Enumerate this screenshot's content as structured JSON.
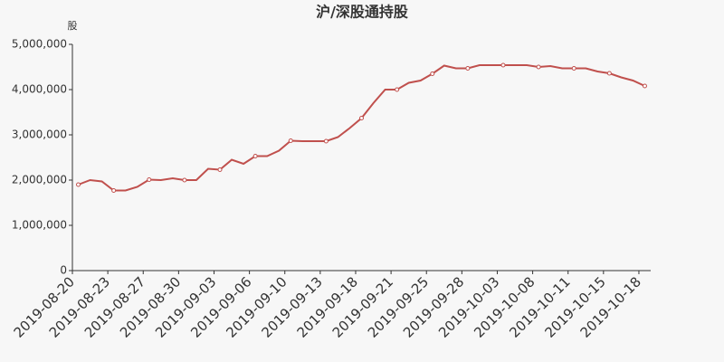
{
  "chart_data": {
    "type": "line",
    "title": "沪/深股通持股",
    "y_unit": "股",
    "categories": [
      "2019-08-20",
      null,
      null,
      "2019-08-23",
      null,
      null,
      "2019-08-27",
      null,
      null,
      "2019-08-30",
      null,
      null,
      "2019-09-03",
      null,
      null,
      "2019-09-06",
      null,
      null,
      "2019-09-10",
      null,
      null,
      "2019-09-13",
      null,
      null,
      "2019-09-18",
      null,
      null,
      "2019-09-21",
      null,
      null,
      "2019-09-25",
      null,
      null,
      "2019-09-28",
      null,
      null,
      "2019-10-03",
      null,
      null,
      "2019-10-08",
      null,
      null,
      "2019-10-11",
      null,
      null,
      "2019-10-15",
      null,
      null,
      "2019-10-18"
    ],
    "series": [
      {
        "color": "#c0504d",
        "values": [
          1900000,
          2000000,
          1970000,
          1770000,
          1770000,
          1850000,
          2010000,
          2000000,
          2040000,
          2000000,
          2000000,
          2250000,
          2230000,
          2450000,
          2360000,
          2530000,
          2530000,
          2650000,
          2870000,
          2860000,
          2860000,
          2860000,
          2950000,
          3150000,
          3370000,
          3700000,
          4000000,
          4000000,
          4150000,
          4200000,
          4350000,
          4530000,
          4470000,
          4470000,
          4540000,
          4540000,
          4540000,
          4540000,
          4540000,
          4500000,
          4520000,
          4470000,
          4470000,
          4470000,
          4400000,
          4360000,
          4270000,
          4200000,
          4080000
        ]
      }
    ],
    "ylim": [
      0,
      5000000
    ],
    "yticks": [
      0,
      {
        "value": 1000000,
        "label": "1,000,000"
      },
      {
        "value": 2000000,
        "label": "2,000,000"
      },
      {
        "value": 3000000,
        "label": "3,000,000"
      },
      {
        "value": 4000000,
        "label": "4,000,000"
      },
      {
        "value": 5000000,
        "label": "5,000,000"
      }
    ],
    "grid": false
  }
}
